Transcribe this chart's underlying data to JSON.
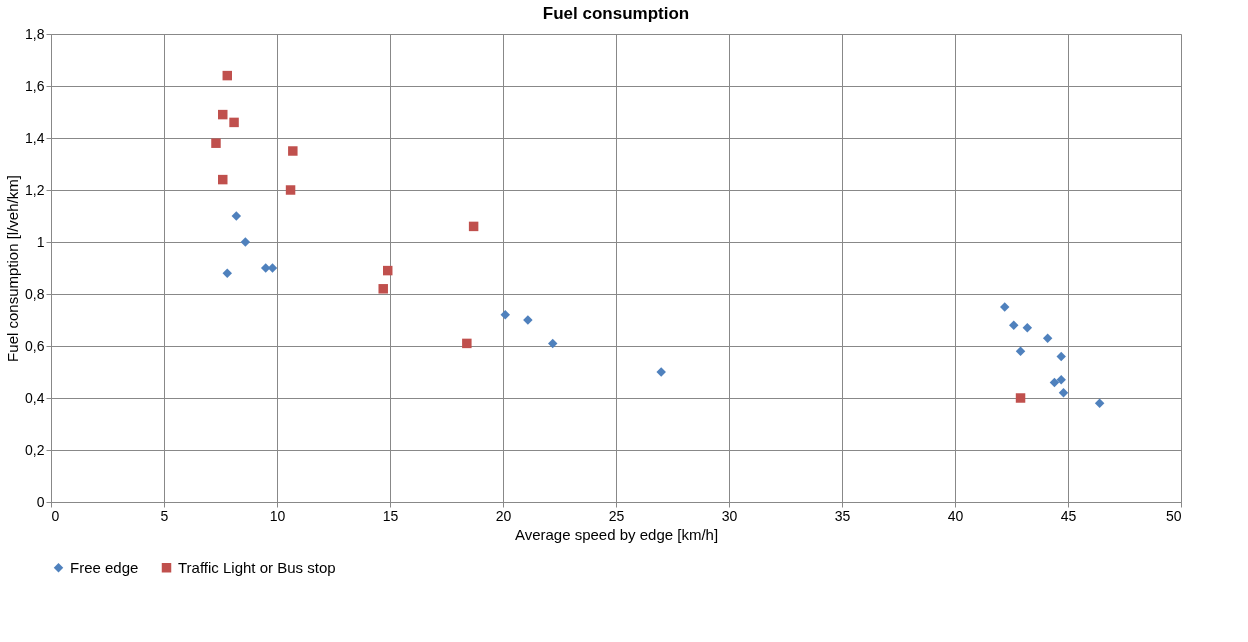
{
  "chart_data": {
    "type": "scatter",
    "title": "Fuel consumption",
    "xlabel": "Average speed by edge  [km/h]",
    "ylabel": "Fuel consumption [l/veh/km]",
    "xlim": [
      0,
      50
    ],
    "xticks": [
      0,
      5,
      10,
      15,
      20,
      25,
      30,
      35,
      40,
      45,
      50
    ],
    "ylim": [
      0,
      1.8
    ],
    "yticks": [
      0,
      {
        "value": 0.2,
        "label": "0,2"
      },
      {
        "value": 0.4,
        "label": "0,4"
      },
      {
        "value": 0.6,
        "label": "0,6"
      },
      {
        "value": 0.8,
        "label": "0,8"
      },
      1,
      {
        "value": 1.2,
        "label": "1,2"
      },
      {
        "value": 1.4,
        "label": "1,4"
      },
      {
        "value": 1.6,
        "label": "1,6"
      },
      {
        "value": 1.8,
        "label": "1,8"
      }
    ],
    "grid": true,
    "legend": "bottom",
    "series": [
      {
        "name": "Free edge",
        "color": "#4f81bd",
        "marker": "diamond",
        "x": [
          7.8,
          8.2,
          8.6,
          9.5,
          9.8,
          20.1,
          21.1,
          22.2,
          27.0,
          42.2,
          42.6,
          43.2,
          42.9,
          44.1,
          44.7,
          44.4,
          44.7,
          44.8,
          46.4
        ],
        "values": [
          0.88,
          1.1,
          1.0,
          0.9,
          0.9,
          0.72,
          0.7,
          0.61,
          0.5,
          0.75,
          0.68,
          0.67,
          0.58,
          0.63,
          0.56,
          0.46,
          0.47,
          0.42,
          0.38
        ]
      },
      {
        "name": "Traffic Light or Bus stop",
        "color": "#c0504d",
        "marker": "square",
        "x": [
          7.8,
          7.6,
          8.1,
          7.3,
          7.6,
          10.7,
          10.6,
          18.7,
          14.9,
          14.7,
          18.4,
          42.9
        ],
        "values": [
          1.64,
          1.49,
          1.46,
          1.38,
          1.24,
          1.35,
          1.2,
          1.06,
          0.89,
          0.82,
          0.61,
          0.4
        ]
      }
    ]
  }
}
